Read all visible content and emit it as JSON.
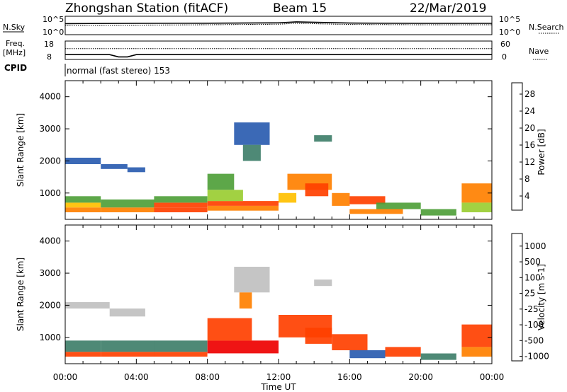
{
  "header": {
    "station": "Zhongshan Station (fitACF)",
    "beam": "Beam 15",
    "date": "22/Mar/2019"
  },
  "side_labels": {
    "nsky": "N.Sky",
    "nsearch": "N.Search",
    "freq_top": "Freq.",
    "freq_unit": "[MHz]",
    "nave": "Nave",
    "cpid": "CPID"
  },
  "cpid_text": "normal (fast stereo) 153",
  "noise_ticks": {
    "left_top": "10^5",
    "left_bottom": "10^0",
    "right_top": "10^5",
    "right_bottom": "10^0"
  },
  "freq_ticks": {
    "left_top": "18",
    "left_bottom": "8",
    "right_top": "60",
    "right_bottom": "0"
  },
  "colors": {
    "power_scale": [
      "#0000ee",
      "#2a5cb0",
      "#3f7f6a",
      "#4f9f3a",
      "#9acd32",
      "#ffc000",
      "#ff8000",
      "#ff4000",
      "#ee0000"
    ],
    "velocity_scale": [
      "#ee0000",
      "#ff4000",
      "#ff8000",
      "#ffb000",
      "#c0c0c0",
      "#c0c0c0",
      "#66cc33",
      "#3f7f6a",
      "#2a5cb0",
      "#2050c0"
    ]
  },
  "chart_data": [
    {
      "type": "line",
      "panel": "noise",
      "series": [
        {
          "name": "N.Sky",
          "x": [
            0,
            4,
            8,
            12,
            13,
            16,
            20,
            24
          ],
          "values": [
            1000,
            1200,
            1300,
            1600,
            3000,
            1400,
            1200,
            1200
          ]
        },
        {
          "name": "N.Search",
          "x": [
            0,
            4,
            8,
            12,
            13,
            16,
            20,
            24
          ],
          "values": [
            300,
            400,
            500,
            700,
            1200,
            600,
            500,
            500
          ]
        }
      ],
      "ylim": [
        1,
        100000
      ],
      "log_scale": true
    },
    {
      "type": "line",
      "panel": "frequency / nave",
      "series": [
        {
          "name": "Freq.",
          "x": [
            0,
            2.5,
            3,
            3.5,
            4,
            24
          ],
          "values": [
            10.6,
            10.6,
            9.4,
            9.4,
            10.6,
            10.6
          ]
        },
        {
          "name": "Nave",
          "x": [
            0,
            24
          ],
          "values": [
            35,
            35
          ]
        }
      ],
      "ylim_left": [
        8,
        18
      ],
      "ylim_right": [
        0,
        60
      ]
    },
    {
      "type": "heatmap",
      "panel": "power",
      "ylabel": "Slant Range [km]",
      "colorbar_label": "Power [dB]",
      "colorbar_ticks": [
        4,
        8,
        12,
        16,
        20,
        24,
        28
      ],
      "clim": [
        0,
        30
      ],
      "xlim": [
        0,
        24
      ],
      "ylim": [
        180,
        4500
      ],
      "yticks": [
        1000,
        2000,
        3000,
        4000
      ],
      "cells": [
        [
          0.0,
          2.0,
          1900,
          2100,
          6
        ],
        [
          2.0,
          3.5,
          1750,
          1900,
          6
        ],
        [
          3.5,
          4.5,
          1650,
          1800,
          6
        ],
        [
          0.0,
          2.0,
          400,
          550,
          22
        ],
        [
          0.0,
          2.0,
          550,
          700,
          18
        ],
        [
          0.0,
          2.0,
          700,
          900,
          10
        ],
        [
          2.0,
          5.0,
          400,
          550,
          20
        ],
        [
          2.0,
          5.0,
          550,
          800,
          10
        ],
        [
          5.0,
          8.0,
          400,
          550,
          26
        ],
        [
          5.0,
          8.0,
          550,
          700,
          24
        ],
        [
          5.0,
          8.0,
          700,
          900,
          10
        ],
        [
          8.0,
          12.0,
          450,
          600,
          22
        ],
        [
          8.0,
          12.0,
          600,
          750,
          26
        ],
        [
          8.0,
          9.5,
          1100,
          1600,
          12
        ],
        [
          8.0,
          10.0,
          750,
          1100,
          16
        ],
        [
          9.5,
          11.5,
          2500,
          3200,
          6
        ],
        [
          10.0,
          11.0,
          2000,
          2500,
          8
        ],
        [
          12.0,
          13.0,
          700,
          1000,
          18
        ],
        [
          12.5,
          15.0,
          1100,
          1600,
          20
        ],
        [
          13.5,
          14.8,
          900,
          1300,
          26
        ],
        [
          14.0,
          15.0,
          2600,
          2800,
          7
        ],
        [
          15.0,
          16.0,
          600,
          1000,
          22
        ],
        [
          16.0,
          18.0,
          650,
          900,
          26
        ],
        [
          16.0,
          19.0,
          350,
          500,
          20
        ],
        [
          17.5,
          20.0,
          500,
          700,
          12
        ],
        [
          20.0,
          22.0,
          300,
          500,
          10
        ],
        [
          22.3,
          24.0,
          700,
          1300,
          20
        ],
        [
          22.3,
          24.0,
          400,
          700,
          14
        ]
      ]
    },
    {
      "type": "heatmap",
      "panel": "velocity",
      "ylabel": "Slant Range [km]",
      "colorbar_label": "Velocity [m s-1]",
      "colorbar_ticks": [
        1000,
        500,
        100,
        25,
        -25,
        -100,
        -500,
        -1000
      ],
      "clim": [
        -1000,
        1000
      ],
      "xlim": [
        0,
        24
      ],
      "ylim": [
        180,
        4500
      ],
      "yticks": [
        1000,
        2000,
        3000,
        4000
      ],
      "cells": [
        [
          0.0,
          2.5,
          1900,
          2100,
          0
        ],
        [
          2.5,
          4.5,
          1650,
          1900,
          0
        ],
        [
          0.0,
          2.0,
          400,
          550,
          -150
        ],
        [
          0.0,
          2.0,
          550,
          900,
          200
        ],
        [
          2.0,
          5.0,
          400,
          550,
          -200
        ],
        [
          2.0,
          5.0,
          550,
          900,
          150
        ],
        [
          5.0,
          8.0,
          400,
          550,
          -200
        ],
        [
          5.0,
          8.0,
          550,
          900,
          150
        ],
        [
          8.0,
          12.0,
          500,
          900,
          -600
        ],
        [
          8.0,
          10.5,
          900,
          1600,
          -300
        ],
        [
          9.5,
          11.5,
          2400,
          3200,
          0
        ],
        [
          9.8,
          10.5,
          1900,
          2400,
          -80
        ],
        [
          12.0,
          15.0,
          1000,
          1700,
          -300
        ],
        [
          13.5,
          15.0,
          800,
          1300,
          -200
        ],
        [
          14.0,
          15.0,
          2600,
          2800,
          0
        ],
        [
          15.0,
          17.0,
          600,
          1100,
          -400
        ],
        [
          16.0,
          18.0,
          350,
          600,
          300
        ],
        [
          18.0,
          20.0,
          400,
          700,
          -120
        ],
        [
          20.0,
          22.0,
          300,
          500,
          200
        ],
        [
          22.3,
          24.0,
          700,
          1400,
          -250
        ],
        [
          22.3,
          24.0,
          400,
          700,
          -80
        ]
      ]
    }
  ],
  "x_axis": {
    "label": "Time UT",
    "ticks": [
      "00:00",
      "04:00",
      "08:00",
      "12:00",
      "16:00",
      "20:00",
      "00:00"
    ]
  }
}
